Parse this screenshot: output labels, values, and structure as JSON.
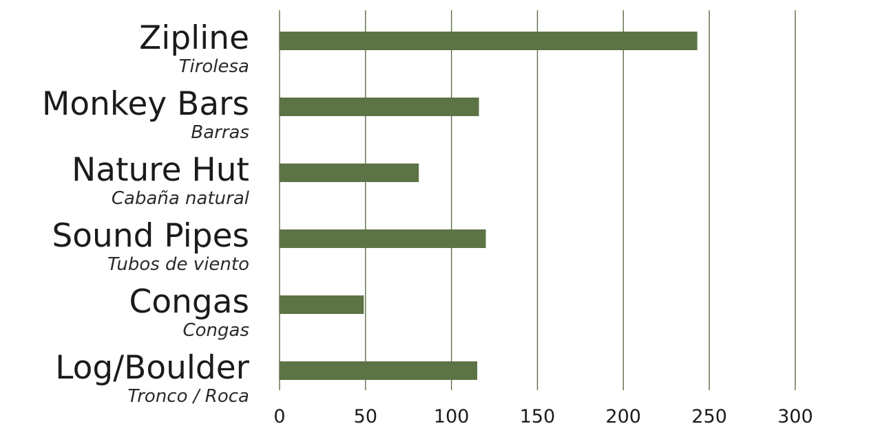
{
  "colors": {
    "bar": "#5c7345",
    "gridline": "#5b6e45",
    "text": "#1b1b1b"
  },
  "chart_data": {
    "type": "bar",
    "orientation": "horizontal",
    "categories": [
      "Zipline",
      "Monkey Bars",
      "Nature Hut",
      "Sound Pipes",
      "Congas",
      "Log/Boulder"
    ],
    "subtitles": [
      "Tirolesa",
      "Barras",
      "Cabaña natural",
      "Tubos de viento",
      "Congas",
      "Tronco / Roca"
    ],
    "values": [
      243,
      116,
      81,
      120,
      49,
      115
    ],
    "xlim": [
      0,
      300
    ],
    "xticks": [
      0,
      50,
      100,
      150,
      200,
      250,
      300
    ],
    "grid": true,
    "title": "",
    "xlabel": "",
    "ylabel": ""
  }
}
